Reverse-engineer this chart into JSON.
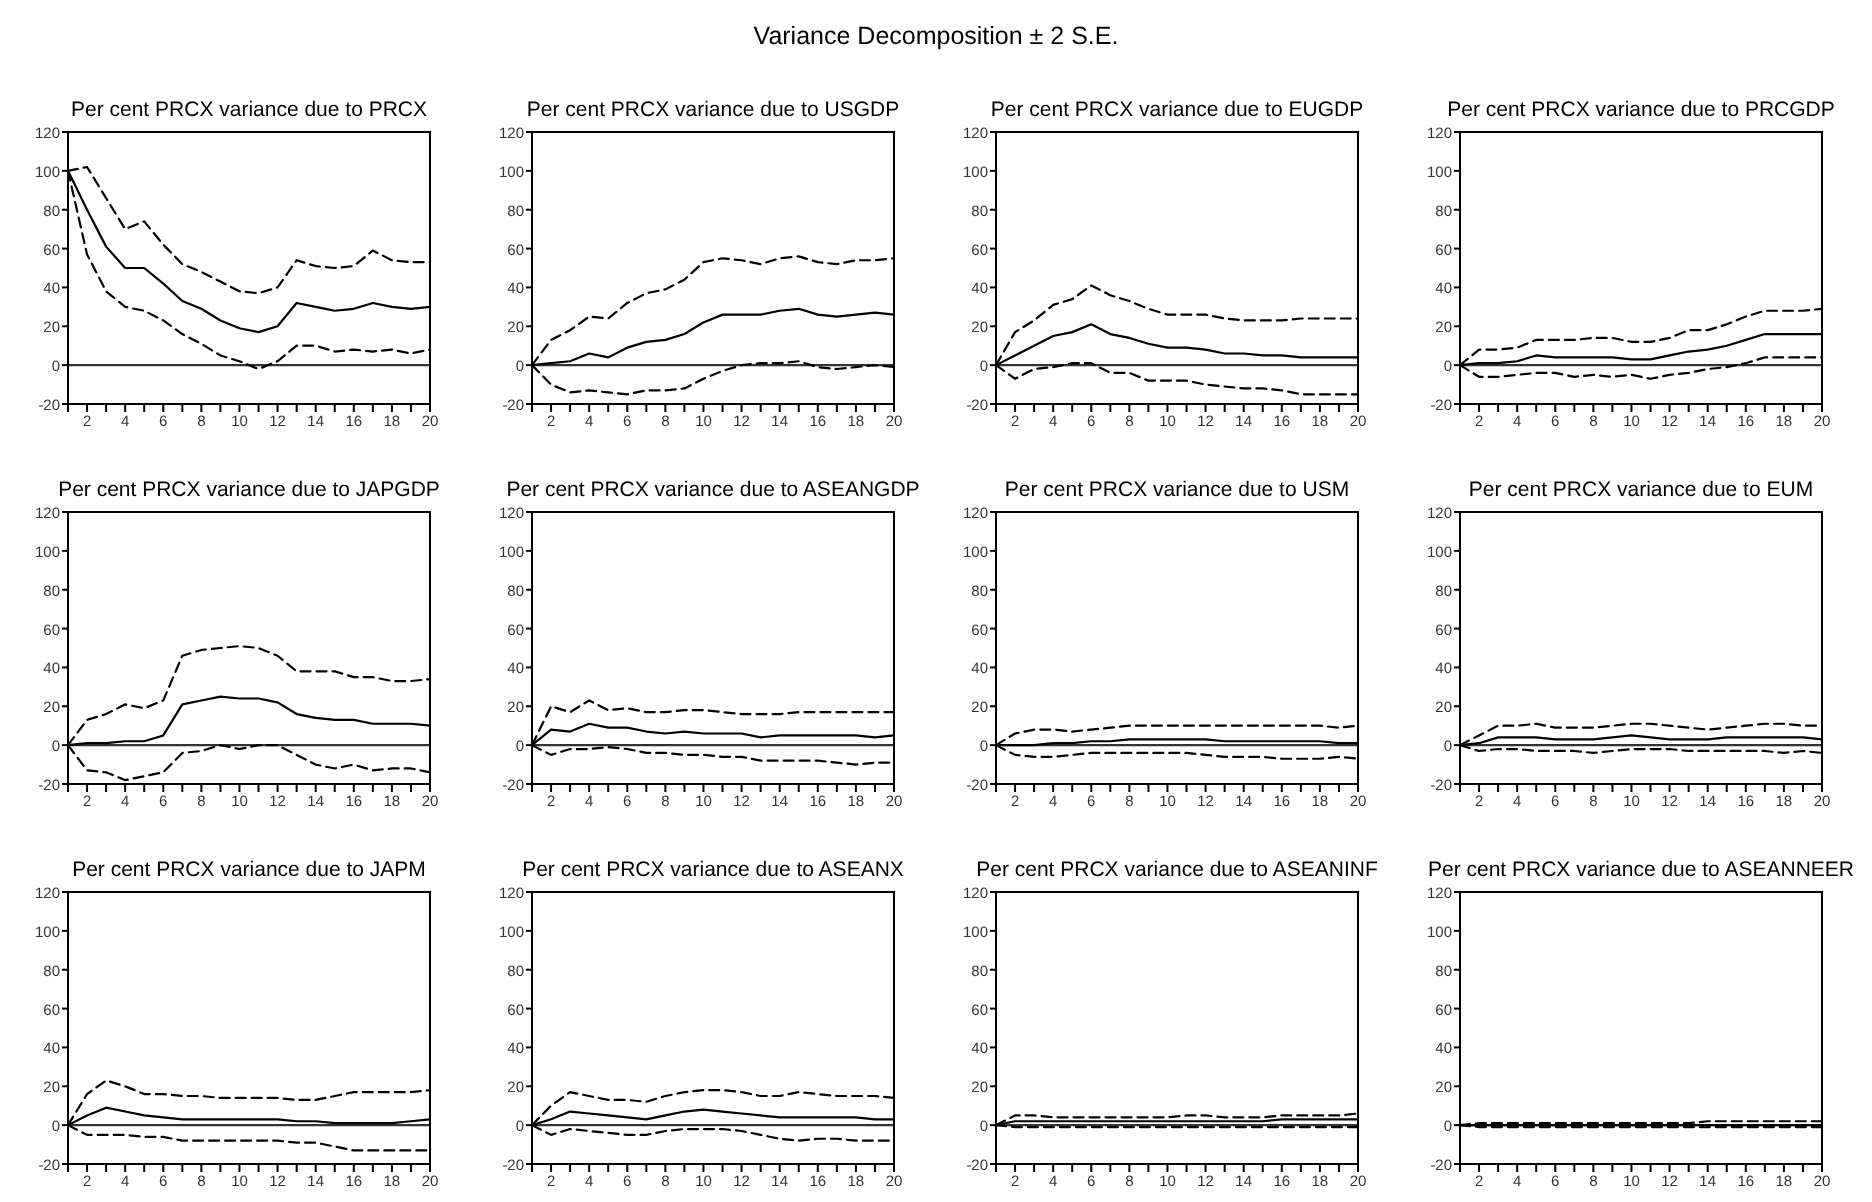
{
  "chart_data": [
    {
      "type": "line",
      "title": "Per cent PRCX variance due to PRCX",
      "annotations": [
        "Variance Decomposition ± 2 S.E."
      ],
      "x": [
        1,
        2,
        3,
        4,
        5,
        6,
        7,
        8,
        9,
        10,
        11,
        12,
        13,
        14,
        15,
        16,
        17,
        18,
        19,
        20
      ],
      "xlim": [
        1,
        20
      ],
      "xticks": [
        {
          "value": 1,
          "label": null
        },
        2,
        {
          "value": 3,
          "label": null
        },
        4,
        {
          "value": 5,
          "label": null
        },
        6,
        {
          "value": 7,
          "label": null
        },
        8,
        {
          "value": 9,
          "label": null
        },
        10,
        {
          "value": 11,
          "label": null
        },
        12,
        {
          "value": 13,
          "label": null
        },
        14,
        {
          "value": 15,
          "label": null
        },
        16,
        {
          "value": 17,
          "label": null
        },
        18,
        {
          "value": 19,
          "label": null
        },
        20
      ],
      "ylim": [
        -20,
        120
      ],
      "yticks": [
        -20,
        0,
        20,
        40,
        60,
        80,
        100,
        120
      ],
      "grid": false,
      "ref_lines": [
        {
          "axis": "y",
          "value": 0,
          "color": "#333333"
        }
      ],
      "series": [
        {
          "color": "#000000",
          "line_style": "solid",
          "values": [
            100,
            80,
            61,
            50,
            50,
            42,
            33,
            29,
            23,
            19,
            17,
            20,
            32,
            30,
            28,
            29,
            32,
            30,
            29,
            30
          ]
        },
        {
          "color": "#000000",
          "line_style": "dashed",
          "values": [
            100,
            102,
            86,
            70,
            74,
            62,
            52,
            48,
            43,
            38,
            37,
            40,
            54,
            51,
            50,
            51,
            59,
            54,
            53,
            53
          ]
        },
        {
          "color": "#000000",
          "line_style": "dashed",
          "values": [
            100,
            57,
            38,
            30,
            28,
            23,
            16,
            11,
            5,
            2,
            -2,
            2,
            10,
            10,
            7,
            8,
            7,
            8,
            6,
            8
          ]
        }
      ]
    },
    {
      "type": "line",
      "title": "Per cent PRCX variance due to USGDP",
      "x": [
        1,
        2,
        3,
        4,
        5,
        6,
        7,
        8,
        9,
        10,
        11,
        12,
        13,
        14,
        15,
        16,
        17,
        18,
        19,
        20
      ],
      "xlim": [
        1,
        20
      ],
      "xticks": [
        {
          "value": 1,
          "label": null
        },
        2,
        {
          "value": 3,
          "label": null
        },
        4,
        {
          "value": 5,
          "label": null
        },
        6,
        {
          "value": 7,
          "label": null
        },
        8,
        {
          "value": 9,
          "label": null
        },
        10,
        {
          "value": 11,
          "label": null
        },
        12,
        {
          "value": 13,
          "label": null
        },
        14,
        {
          "value": 15,
          "label": null
        },
        16,
        {
          "value": 17,
          "label": null
        },
        18,
        {
          "value": 19,
          "label": null
        },
        20
      ],
      "ylim": [
        -20,
        120
      ],
      "yticks": [
        -20,
        0,
        20,
        40,
        60,
        80,
        100,
        120
      ],
      "grid": false,
      "ref_lines": [
        {
          "axis": "y",
          "value": 0,
          "color": "#333333"
        }
      ],
      "series": [
        {
          "color": "#000000",
          "line_style": "solid",
          "values": [
            0,
            1,
            2,
            6,
            4,
            9,
            12,
            13,
            16,
            22,
            26,
            26,
            26,
            28,
            29,
            26,
            25,
            26,
            27,
            26
          ]
        },
        {
          "color": "#000000",
          "line_style": "dashed",
          "values": [
            0,
            13,
            18,
            25,
            24,
            32,
            37,
            39,
            44,
            53,
            55,
            54,
            52,
            55,
            56,
            53,
            52,
            54,
            54,
            55
          ]
        },
        {
          "color": "#000000",
          "line_style": "dashed",
          "values": [
            0,
            -10,
            -14,
            -13,
            -14,
            -15,
            -13,
            -13,
            -12,
            -7,
            -3,
            0,
            1,
            1,
            2,
            -1,
            -2,
            -1,
            0,
            -1
          ]
        }
      ]
    },
    {
      "type": "line",
      "title": "Per cent PRCX variance due to EUGDP",
      "x": [
        1,
        2,
        3,
        4,
        5,
        6,
        7,
        8,
        9,
        10,
        11,
        12,
        13,
        14,
        15,
        16,
        17,
        18,
        19,
        20
      ],
      "xlim": [
        1,
        20
      ],
      "xticks": [
        {
          "value": 1,
          "label": null
        },
        2,
        {
          "value": 3,
          "label": null
        },
        4,
        {
          "value": 5,
          "label": null
        },
        6,
        {
          "value": 7,
          "label": null
        },
        8,
        {
          "value": 9,
          "label": null
        },
        10,
        {
          "value": 11,
          "label": null
        },
        12,
        {
          "value": 13,
          "label": null
        },
        14,
        {
          "value": 15,
          "label": null
        },
        16,
        {
          "value": 17,
          "label": null
        },
        18,
        {
          "value": 19,
          "label": null
        },
        20
      ],
      "ylim": [
        -20,
        120
      ],
      "yticks": [
        -20,
        0,
        20,
        40,
        60,
        80,
        100,
        120
      ],
      "grid": false,
      "ref_lines": [
        {
          "axis": "y",
          "value": 0,
          "color": "#333333"
        }
      ],
      "series": [
        {
          "color": "#000000",
          "line_style": "solid",
          "values": [
            0,
            5,
            10,
            15,
            17,
            21,
            16,
            14,
            11,
            9,
            9,
            8,
            6,
            6,
            5,
            5,
            4,
            4,
            4,
            4
          ]
        },
        {
          "color": "#000000",
          "line_style": "dashed",
          "values": [
            0,
            17,
            23,
            31,
            34,
            41,
            36,
            33,
            29,
            26,
            26,
            26,
            24,
            23,
            23,
            23,
            24,
            24,
            24,
            24
          ]
        },
        {
          "color": "#000000",
          "line_style": "dashed",
          "values": [
            0,
            -7,
            -2,
            -1,
            1,
            1,
            -4,
            -4,
            -8,
            -8,
            -8,
            -10,
            -11,
            -12,
            -12,
            -13,
            -15,
            -15,
            -15,
            -15
          ]
        }
      ]
    },
    {
      "type": "line",
      "title": "Per cent PRCX variance due to PRCGDP",
      "x": [
        1,
        2,
        3,
        4,
        5,
        6,
        7,
        8,
        9,
        10,
        11,
        12,
        13,
        14,
        15,
        16,
        17,
        18,
        19,
        20
      ],
      "xlim": [
        1,
        20
      ],
      "xticks": [
        {
          "value": 1,
          "label": null
        },
        2,
        {
          "value": 3,
          "label": null
        },
        4,
        {
          "value": 5,
          "label": null
        },
        6,
        {
          "value": 7,
          "label": null
        },
        8,
        {
          "value": 9,
          "label": null
        },
        10,
        {
          "value": 11,
          "label": null
        },
        12,
        {
          "value": 13,
          "label": null
        },
        14,
        {
          "value": 15,
          "label": null
        },
        16,
        {
          "value": 17,
          "label": null
        },
        18,
        {
          "value": 19,
          "label": null
        },
        20
      ],
      "ylim": [
        -20,
        120
      ],
      "yticks": [
        -20,
        0,
        20,
        40,
        60,
        80,
        100,
        120
      ],
      "grid": false,
      "ref_lines": [
        {
          "axis": "y",
          "value": 0,
          "color": "#333333"
        }
      ],
      "series": [
        {
          "color": "#000000",
          "line_style": "solid",
          "values": [
            0,
            1,
            1,
            2,
            5,
            4,
            4,
            4,
            4,
            3,
            3,
            5,
            7,
            8,
            10,
            13,
            16,
            16,
            16,
            16
          ]
        },
        {
          "color": "#000000",
          "line_style": "dashed",
          "values": [
            0,
            8,
            8,
            9,
            13,
            13,
            13,
            14,
            14,
            12,
            12,
            14,
            18,
            18,
            21,
            25,
            28,
            28,
            28,
            29
          ]
        },
        {
          "color": "#000000",
          "line_style": "dashed",
          "values": [
            0,
            -6,
            -6,
            -5,
            -4,
            -4,
            -6,
            -5,
            -6,
            -5,
            -7,
            -5,
            -4,
            -2,
            -1,
            1,
            4,
            4,
            4,
            4
          ]
        }
      ]
    },
    {
      "type": "line",
      "title": "Per cent PRCX variance due to JAPGDP",
      "x": [
        1,
        2,
        3,
        4,
        5,
        6,
        7,
        8,
        9,
        10,
        11,
        12,
        13,
        14,
        15,
        16,
        17,
        18,
        19,
        20
      ],
      "xlim": [
        1,
        20
      ],
      "xticks": [
        {
          "value": 1,
          "label": null
        },
        2,
        {
          "value": 3,
          "label": null
        },
        4,
        {
          "value": 5,
          "label": null
        },
        6,
        {
          "value": 7,
          "label": null
        },
        8,
        {
          "value": 9,
          "label": null
        },
        10,
        {
          "value": 11,
          "label": null
        },
        12,
        {
          "value": 13,
          "label": null
        },
        14,
        {
          "value": 15,
          "label": null
        },
        16,
        {
          "value": 17,
          "label": null
        },
        18,
        {
          "value": 19,
          "label": null
        },
        20
      ],
      "ylim": [
        -20,
        120
      ],
      "yticks": [
        -20,
        0,
        20,
        40,
        60,
        80,
        100,
        120
      ],
      "grid": false,
      "ref_lines": [
        {
          "axis": "y",
          "value": 0,
          "color": "#333333"
        }
      ],
      "series": [
        {
          "color": "#000000",
          "line_style": "solid",
          "values": [
            0,
            1,
            1,
            2,
            2,
            5,
            21,
            23,
            25,
            24,
            24,
            22,
            16,
            14,
            13,
            13,
            11,
            11,
            11,
            10
          ]
        },
        {
          "color": "#000000",
          "line_style": "dashed",
          "values": [
            0,
            13,
            16,
            21,
            19,
            23,
            46,
            49,
            50,
            51,
            50,
            46,
            38,
            38,
            38,
            35,
            35,
            33,
            33,
            34
          ]
        },
        {
          "color": "#000000",
          "line_style": "dashed",
          "values": [
            0,
            -13,
            -14,
            -18,
            -16,
            -14,
            -4,
            -3,
            0,
            -2,
            0,
            0,
            -5,
            -10,
            -12,
            -10,
            -13,
            -12,
            -12,
            -14
          ]
        }
      ]
    },
    {
      "type": "line",
      "title": "Per cent PRCX variance due to ASEANGDP",
      "x": [
        1,
        2,
        3,
        4,
        5,
        6,
        7,
        8,
        9,
        10,
        11,
        12,
        13,
        14,
        15,
        16,
        17,
        18,
        19,
        20
      ],
      "xlim": [
        1,
        20
      ],
      "xticks": [
        {
          "value": 1,
          "label": null
        },
        2,
        {
          "value": 3,
          "label": null
        },
        4,
        {
          "value": 5,
          "label": null
        },
        6,
        {
          "value": 7,
          "label": null
        },
        8,
        {
          "value": 9,
          "label": null
        },
        10,
        {
          "value": 11,
          "label": null
        },
        12,
        {
          "value": 13,
          "label": null
        },
        14,
        {
          "value": 15,
          "label": null
        },
        16,
        {
          "value": 17,
          "label": null
        },
        18,
        {
          "value": 19,
          "label": null
        },
        20
      ],
      "ylim": [
        -20,
        120
      ],
      "yticks": [
        -20,
        0,
        20,
        40,
        60,
        80,
        100,
        120
      ],
      "grid": false,
      "ref_lines": [
        {
          "axis": "y",
          "value": 0,
          "color": "#333333"
        }
      ],
      "series": [
        {
          "color": "#000000",
          "line_style": "solid",
          "values": [
            0,
            8,
            7,
            11,
            9,
            9,
            7,
            6,
            7,
            6,
            6,
            6,
            4,
            5,
            5,
            5,
            5,
            5,
            4,
            5
          ]
        },
        {
          "color": "#000000",
          "line_style": "dashed",
          "values": [
            0,
            20,
            17,
            23,
            18,
            19,
            17,
            17,
            18,
            18,
            17,
            16,
            16,
            16,
            17,
            17,
            17,
            17,
            17,
            17
          ]
        },
        {
          "color": "#000000",
          "line_style": "dashed",
          "values": [
            0,
            -5,
            -2,
            -2,
            -1,
            -2,
            -4,
            -4,
            -5,
            -5,
            -6,
            -6,
            -8,
            -8,
            -8,
            -8,
            -9,
            -10,
            -9,
            -9
          ]
        }
      ]
    },
    {
      "type": "line",
      "title": "Per cent PRCX variance due to USM",
      "x": [
        1,
        2,
        3,
        4,
        5,
        6,
        7,
        8,
        9,
        10,
        11,
        12,
        13,
        14,
        15,
        16,
        17,
        18,
        19,
        20
      ],
      "xlim": [
        1,
        20
      ],
      "xticks": [
        {
          "value": 1,
          "label": null
        },
        2,
        {
          "value": 3,
          "label": null
        },
        4,
        {
          "value": 5,
          "label": null
        },
        6,
        {
          "value": 7,
          "label": null
        },
        8,
        {
          "value": 9,
          "label": null
        },
        10,
        {
          "value": 11,
          "label": null
        },
        12,
        {
          "value": 13,
          "label": null
        },
        14,
        {
          "value": 15,
          "label": null
        },
        16,
        {
          "value": 17,
          "label": null
        },
        18,
        {
          "value": 19,
          "label": null
        },
        20
      ],
      "ylim": [
        -20,
        120
      ],
      "yticks": [
        -20,
        0,
        20,
        40,
        60,
        80,
        100,
        120
      ],
      "grid": false,
      "ref_lines": [
        {
          "axis": "y",
          "value": 0,
          "color": "#333333"
        }
      ],
      "series": [
        {
          "color": "#000000",
          "line_style": "solid",
          "values": [
            0,
            0,
            0,
            1,
            1,
            2,
            2,
            3,
            3,
            3,
            3,
            3,
            2,
            2,
            2,
            2,
            2,
            2,
            1,
            1
          ]
        },
        {
          "color": "#000000",
          "line_style": "dashed",
          "values": [
            0,
            6,
            8,
            8,
            7,
            8,
            9,
            10,
            10,
            10,
            10,
            10,
            10,
            10,
            10,
            10,
            10,
            10,
            9,
            10
          ]
        },
        {
          "color": "#000000",
          "line_style": "dashed",
          "values": [
            0,
            -5,
            -6,
            -6,
            -5,
            -4,
            -4,
            -4,
            -4,
            -4,
            -4,
            -5,
            -6,
            -6,
            -6,
            -7,
            -7,
            -7,
            -6,
            -7
          ]
        }
      ]
    },
    {
      "type": "line",
      "title": "Per cent PRCX variance due to EUM",
      "x": [
        1,
        2,
        3,
        4,
        5,
        6,
        7,
        8,
        9,
        10,
        11,
        12,
        13,
        14,
        15,
        16,
        17,
        18,
        19,
        20
      ],
      "xlim": [
        1,
        20
      ],
      "xticks": [
        {
          "value": 1,
          "label": null
        },
        2,
        {
          "value": 3,
          "label": null
        },
        4,
        {
          "value": 5,
          "label": null
        },
        6,
        {
          "value": 7,
          "label": null
        },
        8,
        {
          "value": 9,
          "label": null
        },
        10,
        {
          "value": 11,
          "label": null
        },
        12,
        {
          "value": 13,
          "label": null
        },
        14,
        {
          "value": 15,
          "label": null
        },
        16,
        {
          "value": 17,
          "label": null
        },
        18,
        {
          "value": 19,
          "label": null
        },
        20
      ],
      "ylim": [
        -20,
        120
      ],
      "yticks": [
        -20,
        0,
        20,
        40,
        60,
        80,
        100,
        120
      ],
      "grid": false,
      "ref_lines": [
        {
          "axis": "y",
          "value": 0,
          "color": "#333333"
        }
      ],
      "series": [
        {
          "color": "#000000",
          "line_style": "solid",
          "values": [
            0,
            1,
            4,
            4,
            4,
            3,
            3,
            3,
            4,
            5,
            4,
            3,
            3,
            3,
            4,
            4,
            4,
            4,
            4,
            3
          ]
        },
        {
          "color": "#000000",
          "line_style": "dashed",
          "values": [
            0,
            5,
            10,
            10,
            11,
            9,
            9,
            9,
            10,
            11,
            11,
            10,
            9,
            8,
            9,
            10,
            11,
            11,
            10,
            10
          ]
        },
        {
          "color": "#000000",
          "line_style": "dashed",
          "values": [
            0,
            -3,
            -2,
            -2,
            -3,
            -3,
            -3,
            -4,
            -3,
            -2,
            -2,
            -2,
            -3,
            -3,
            -3,
            -3,
            -3,
            -4,
            -3,
            -4
          ]
        }
      ]
    },
    {
      "type": "line",
      "title": "Per cent PRCX variance due to JAPM",
      "x": [
        1,
        2,
        3,
        4,
        5,
        6,
        7,
        8,
        9,
        10,
        11,
        12,
        13,
        14,
        15,
        16,
        17,
        18,
        19,
        20
      ],
      "xlim": [
        1,
        20
      ],
      "xticks": [
        {
          "value": 1,
          "label": null
        },
        2,
        {
          "value": 3,
          "label": null
        },
        4,
        {
          "value": 5,
          "label": null
        },
        6,
        {
          "value": 7,
          "label": null
        },
        8,
        {
          "value": 9,
          "label": null
        },
        10,
        {
          "value": 11,
          "label": null
        },
        12,
        {
          "value": 13,
          "label": null
        },
        14,
        {
          "value": 15,
          "label": null
        },
        16,
        {
          "value": 17,
          "label": null
        },
        18,
        {
          "value": 19,
          "label": null
        },
        20
      ],
      "ylim": [
        -20,
        120
      ],
      "yticks": [
        -20,
        0,
        20,
        40,
        60,
        80,
        100,
        120
      ],
      "grid": false,
      "ref_lines": [
        {
          "axis": "y",
          "value": 0,
          "color": "#333333"
        }
      ],
      "series": [
        {
          "color": "#000000",
          "line_style": "solid",
          "values": [
            0,
            5,
            9,
            7,
            5,
            4,
            3,
            3,
            3,
            3,
            3,
            3,
            2,
            2,
            1,
            1,
            1,
            1,
            2,
            3
          ]
        },
        {
          "color": "#000000",
          "line_style": "dashed",
          "values": [
            0,
            16,
            23,
            20,
            16,
            16,
            15,
            15,
            14,
            14,
            14,
            14,
            13,
            13,
            15,
            17,
            17,
            17,
            17,
            18
          ]
        },
        {
          "color": "#000000",
          "line_style": "dashed",
          "values": [
            0,
            -5,
            -5,
            -5,
            -6,
            -6,
            -8,
            -8,
            -8,
            -8,
            -8,
            -8,
            -9,
            -9,
            -11,
            -13,
            -13,
            -13,
            -13,
            -13
          ]
        }
      ]
    },
    {
      "type": "line",
      "title": "Per cent PRCX variance due to ASEANX",
      "x": [
        1,
        2,
        3,
        4,
        5,
        6,
        7,
        8,
        9,
        10,
        11,
        12,
        13,
        14,
        15,
        16,
        17,
        18,
        19,
        20
      ],
      "xlim": [
        1,
        20
      ],
      "xticks": [
        {
          "value": 1,
          "label": null
        },
        2,
        {
          "value": 3,
          "label": null
        },
        4,
        {
          "value": 5,
          "label": null
        },
        6,
        {
          "value": 7,
          "label": null
        },
        8,
        {
          "value": 9,
          "label": null
        },
        10,
        {
          "value": 11,
          "label": null
        },
        12,
        {
          "value": 13,
          "label": null
        },
        14,
        {
          "value": 15,
          "label": null
        },
        16,
        {
          "value": 17,
          "label": null
        },
        18,
        {
          "value": 19,
          "label": null
        },
        20
      ],
      "ylim": [
        -20,
        120
      ],
      "yticks": [
        -20,
        0,
        20,
        40,
        60,
        80,
        100,
        120
      ],
      "grid": false,
      "ref_lines": [
        {
          "axis": "y",
          "value": 0,
          "color": "#333333"
        }
      ],
      "series": [
        {
          "color": "#000000",
          "line_style": "solid",
          "values": [
            0,
            3,
            7,
            6,
            5,
            4,
            3,
            5,
            7,
            8,
            7,
            6,
            5,
            4,
            4,
            4,
            4,
            4,
            3,
            3
          ]
        },
        {
          "color": "#000000",
          "line_style": "dashed",
          "values": [
            0,
            10,
            17,
            15,
            13,
            13,
            12,
            15,
            17,
            18,
            18,
            17,
            15,
            15,
            17,
            16,
            15,
            15,
            15,
            14
          ]
        },
        {
          "color": "#000000",
          "line_style": "dashed",
          "values": [
            0,
            -5,
            -2,
            -3,
            -4,
            -5,
            -5,
            -3,
            -2,
            -2,
            -2,
            -3,
            -5,
            -7,
            -8,
            -7,
            -7,
            -8,
            -8,
            -8
          ]
        }
      ]
    },
    {
      "type": "line",
      "title": "Per cent PRCX variance due to ASEANINF",
      "x": [
        1,
        2,
        3,
        4,
        5,
        6,
        7,
        8,
        9,
        10,
        11,
        12,
        13,
        14,
        15,
        16,
        17,
        18,
        19,
        20
      ],
      "xlim": [
        1,
        20
      ],
      "xticks": [
        {
          "value": 1,
          "label": null
        },
        2,
        {
          "value": 3,
          "label": null
        },
        4,
        {
          "value": 5,
          "label": null
        },
        6,
        {
          "value": 7,
          "label": null
        },
        8,
        {
          "value": 9,
          "label": null
        },
        10,
        {
          "value": 11,
          "label": null
        },
        12,
        {
          "value": 13,
          "label": null
        },
        14,
        {
          "value": 15,
          "label": null
        },
        16,
        {
          "value": 17,
          "label": null
        },
        18,
        {
          "value": 19,
          "label": null
        },
        20
      ],
      "ylim": [
        -20,
        120
      ],
      "yticks": [
        -20,
        0,
        20,
        40,
        60,
        80,
        100,
        120
      ],
      "grid": false,
      "ref_lines": [
        {
          "axis": "y",
          "value": 0,
          "color": "#333333"
        }
      ],
      "series": [
        {
          "color": "#000000",
          "line_style": "solid",
          "values": [
            0,
            2,
            2,
            2,
            2,
            2,
            2,
            2,
            2,
            2,
            2,
            2,
            2,
            2,
            2,
            3,
            3,
            3,
            3,
            3
          ]
        },
        {
          "color": "#000000",
          "line_style": "dashed",
          "values": [
            0,
            5,
            5,
            4,
            4,
            4,
            4,
            4,
            4,
            4,
            5,
            5,
            4,
            4,
            4,
            5,
            5,
            5,
            5,
            6
          ]
        },
        {
          "color": "#000000",
          "line_style": "dashed",
          "values": [
            0,
            -1,
            -1,
            -1,
            -1,
            -1,
            -1,
            -1,
            -1,
            -1,
            -1,
            -1,
            -1,
            -1,
            -1,
            -1,
            -1,
            -1,
            -1,
            -1
          ]
        }
      ]
    },
    {
      "type": "line",
      "title": "Per cent PRCX variance due to ASEANNEER",
      "x": [
        1,
        2,
        3,
        4,
        5,
        6,
        7,
        8,
        9,
        10,
        11,
        12,
        13,
        14,
        15,
        16,
        17,
        18,
        19,
        20
      ],
      "xlim": [
        1,
        20
      ],
      "xticks": [
        {
          "value": 1,
          "label": null
        },
        2,
        {
          "value": 3,
          "label": null
        },
        4,
        {
          "value": 5,
          "label": null
        },
        6,
        {
          "value": 7,
          "label": null
        },
        8,
        {
          "value": 9,
          "label": null
        },
        10,
        {
          "value": 11,
          "label": null
        },
        12,
        {
          "value": 13,
          "label": null
        },
        14,
        {
          "value": 15,
          "label": null
        },
        16,
        {
          "value": 17,
          "label": null
        },
        18,
        {
          "value": 19,
          "label": null
        },
        20
      ],
      "ylim": [
        -20,
        120
      ],
      "yticks": [
        -20,
        0,
        20,
        40,
        60,
        80,
        100,
        120
      ],
      "grid": false,
      "ref_lines": [
        {
          "axis": "y",
          "value": 0,
          "color": "#333333"
        }
      ],
      "series": [
        {
          "color": "#000000",
          "line_style": "solid",
          "values": [
            0,
            0,
            0,
            0,
            0,
            0,
            0,
            0,
            0,
            0,
            0,
            0,
            0,
            0,
            0,
            0,
            0,
            0,
            0,
            0
          ]
        },
        {
          "color": "#000000",
          "line_style": "dashed",
          "values": [
            0,
            1,
            1,
            1,
            1,
            1,
            1,
            1,
            1,
            1,
            1,
            1,
            1,
            2,
            2,
            2,
            2,
            2,
            2,
            2
          ]
        },
        {
          "color": "#000000",
          "line_style": "dashed",
          "values": [
            0,
            -1,
            -1,
            -1,
            -1,
            -1,
            -1,
            -1,
            -1,
            -1,
            -1,
            -1,
            -1,
            -1,
            -1,
            -1,
            -1,
            -1,
            -1,
            -1
          ]
        }
      ]
    }
  ]
}
